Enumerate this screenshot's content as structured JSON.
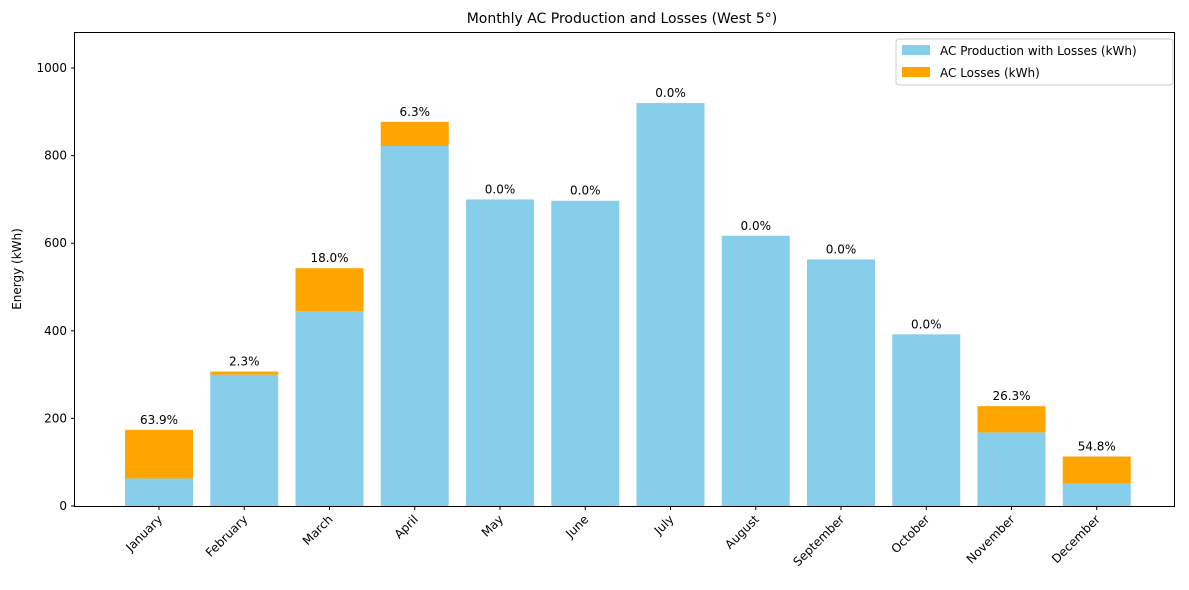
{
  "chart_data": {
    "type": "bar",
    "stacked": true,
    "title": "Monthly AC Production and Losses (West 5°)",
    "xlabel": "",
    "ylabel": "Energy (kWh)",
    "ylim": [
      0,
      1080
    ],
    "yticks": [
      0,
      200,
      400,
      600,
      800,
      1000
    ],
    "grid": false,
    "legend_position": "top-right",
    "categories": [
      "January",
      "February",
      "March",
      "April",
      "May",
      "June",
      "July",
      "August",
      "September",
      "October",
      "November",
      "December"
    ],
    "series": [
      {
        "name": "AC Production with Losses (kWh)",
        "color": "#87CEEB",
        "values": [
          63,
          300,
          445,
          822,
          700,
          697,
          920,
          617,
          563,
          392,
          168,
          51
        ]
      },
      {
        "name": "AC Losses (kWh)",
        "color": "#FFA500",
        "values": [
          111,
          7,
          98,
          55,
          0,
          0,
          0,
          0,
          0,
          0,
          60,
          62
        ]
      }
    ],
    "bar_labels": [
      "63.9%",
      "2.3%",
      "18.0%",
      "6.3%",
      "0.0%",
      "0.0%",
      "0.0%",
      "0.0%",
      "0.0%",
      "0.0%",
      "26.3%",
      "54.8%"
    ]
  }
}
